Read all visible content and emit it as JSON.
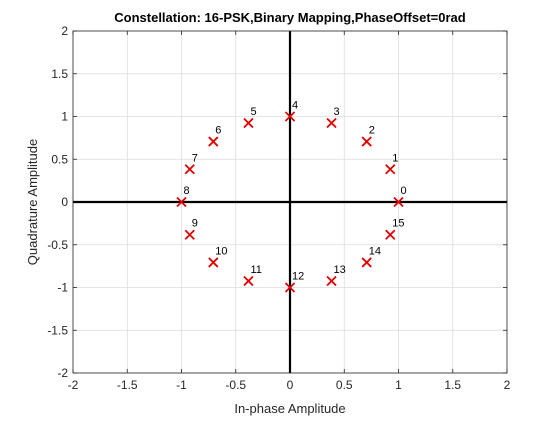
{
  "chart_data": {
    "type": "scatter",
    "title": "Constellation: 16-PSK,Binary Mapping,PhaseOffset=0rad",
    "xlabel": "In-phase Amplitude",
    "ylabel": "Quadrature Amplitude",
    "xlim": [
      -2,
      2
    ],
    "ylim": [
      -2,
      2
    ],
    "xticks": [
      -2,
      -1.5,
      -1,
      -0.5,
      0,
      0.5,
      1,
      1.5,
      2
    ],
    "yticks": [
      -2,
      -1.5,
      -1,
      -0.5,
      0,
      0.5,
      1,
      1.5,
      2
    ],
    "xtick_labels": [
      "-2",
      "-1.5",
      "-1",
      "-0.5",
      "0",
      "0.5",
      "1",
      "1.5",
      "2"
    ],
    "ytick_labels": [
      "-2",
      "-1.5",
      "-1",
      "-0.5",
      "0",
      "0.5",
      "1",
      "1.5",
      "2"
    ],
    "grid": true,
    "marker": "x",
    "marker_color": "#e00000",
    "points": [
      {
        "label": "0",
        "x": 1.0,
        "y": 0.0
      },
      {
        "label": "1",
        "x": 0.924,
        "y": 0.383
      },
      {
        "label": "2",
        "x": 0.707,
        "y": 0.707
      },
      {
        "label": "3",
        "x": 0.383,
        "y": 0.924
      },
      {
        "label": "4",
        "x": 0.0,
        "y": 1.0
      },
      {
        "label": "5",
        "x": -0.383,
        "y": 0.924
      },
      {
        "label": "6",
        "x": -0.707,
        "y": 0.707
      },
      {
        "label": "7",
        "x": -0.924,
        "y": 0.383
      },
      {
        "label": "8",
        "x": -1.0,
        "y": 0.0
      },
      {
        "label": "9",
        "x": -0.924,
        "y": -0.383
      },
      {
        "label": "10",
        "x": -0.707,
        "y": -0.707
      },
      {
        "label": "11",
        "x": -0.383,
        "y": -0.924
      },
      {
        "label": "12",
        "x": 0.0,
        "y": -1.0
      },
      {
        "label": "13",
        "x": 0.383,
        "y": -0.924
      },
      {
        "label": "14",
        "x": 0.707,
        "y": -0.707
      },
      {
        "label": "15",
        "x": 0.924,
        "y": -0.383
      }
    ]
  }
}
